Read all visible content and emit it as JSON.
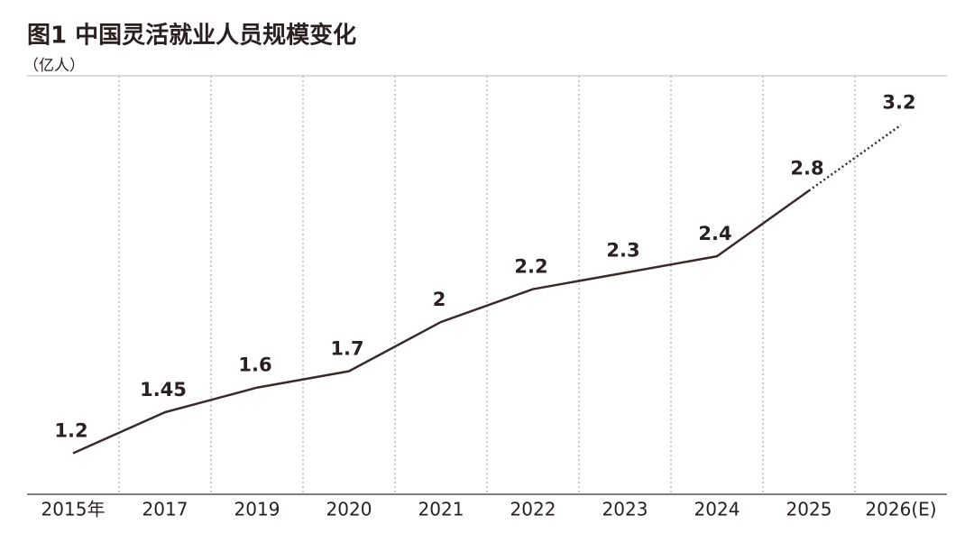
{
  "chart_data": {
    "type": "line",
    "title": "图1 中国灵活就业人员规模变化",
    "y_label": "（亿人）",
    "categories": [
      "2015年",
      "2017",
      "2019",
      "2020",
      "2021",
      "2022",
      "2023",
      "2024",
      "2025",
      "2026(E)"
    ],
    "series": [
      {
        "name": "灵活就业人员",
        "color": "#3a2a2a",
        "values": [
          1.2,
          1.45,
          1.6,
          1.7,
          2,
          2.2,
          2.3,
          2.4,
          2.8,
          3.2
        ]
      }
    ],
    "ylim": [
      0.95,
      3.5
    ],
    "last_segment_style": "dotted",
    "grid": true
  }
}
